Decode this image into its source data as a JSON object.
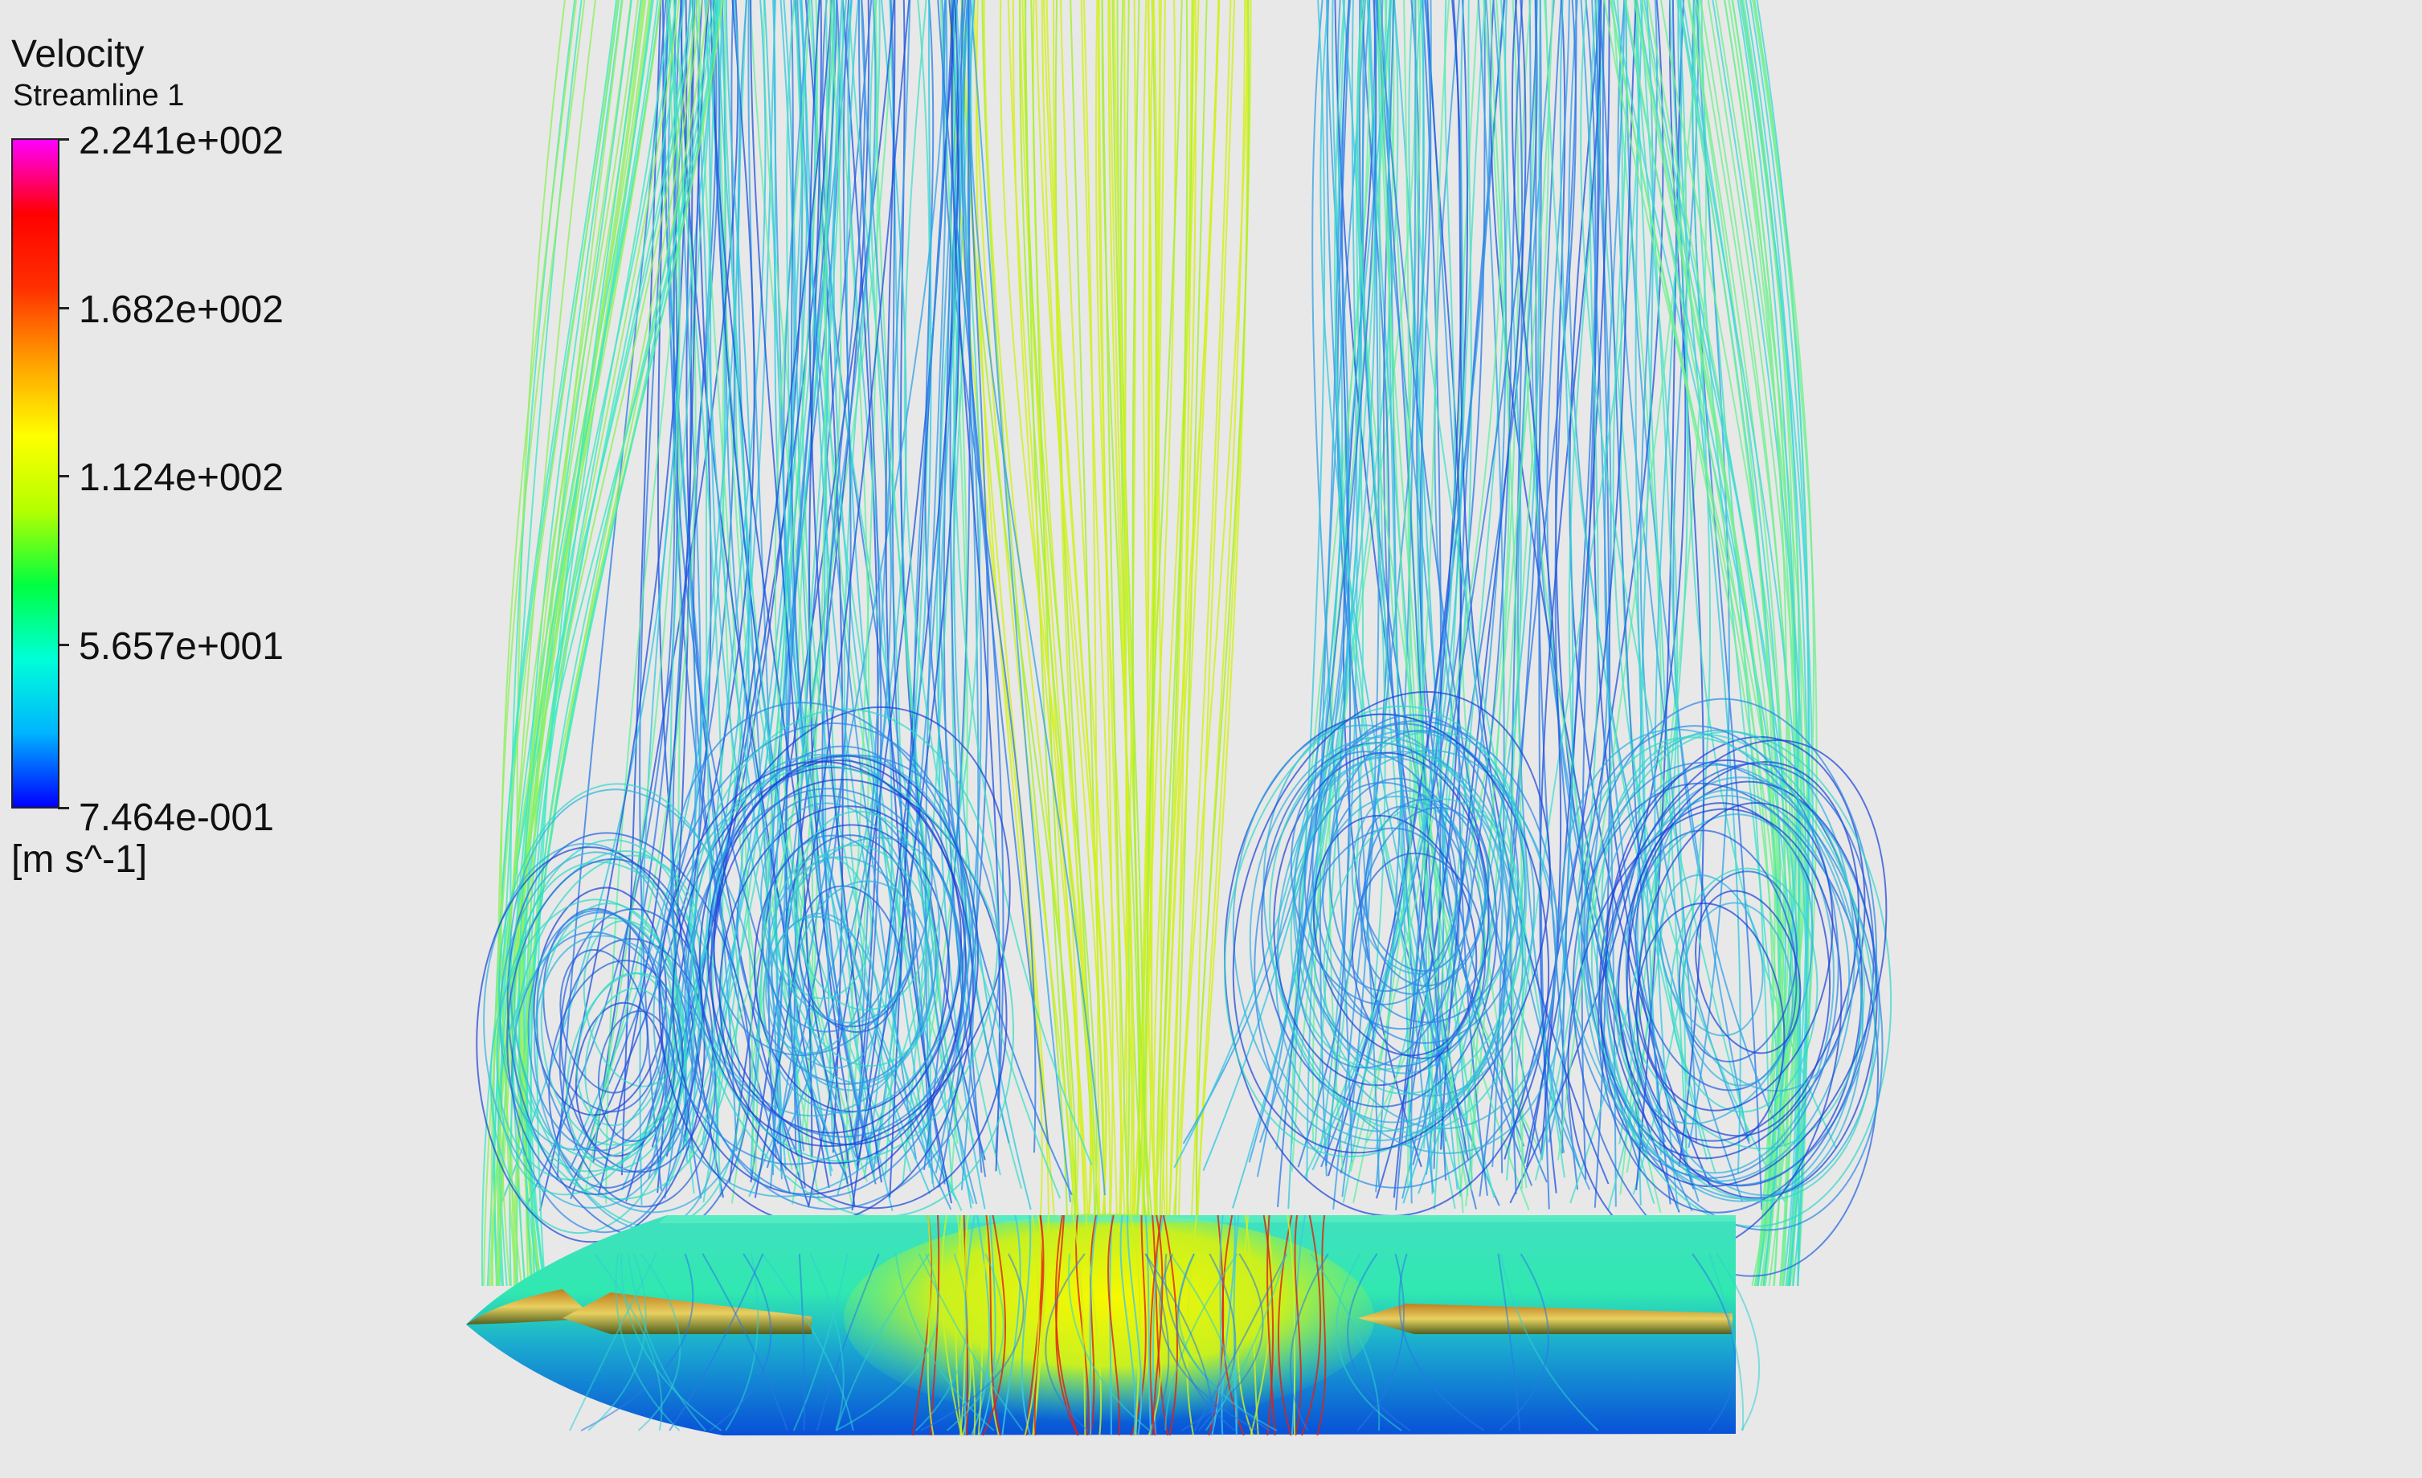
{
  "legend": {
    "title": "Velocity",
    "subtitle": "Streamline 1",
    "units": "[m s^-1]",
    "ticks": [
      "2.241e+002",
      "1.682e+002",
      "1.124e+002",
      "5.657e+001",
      "7.464e-001"
    ],
    "colormap": [
      "#0000ff",
      "#00b4ff",
      "#00ffd8",
      "#00ff40",
      "#b4ff00",
      "#ffff00",
      "#ffa000",
      "#ff3000",
      "#ff0000",
      "#ff00ff"
    ]
  },
  "chart_data": {
    "type": "streamline",
    "variable": "Velocity",
    "range": [
      0.7464,
      224.1
    ],
    "ticks": [
      224.1,
      168.2,
      112.4,
      56.57,
      0.7464
    ],
    "units": "m s^-1"
  },
  "colors": {
    "background": "#e8e8e8",
    "streamline_core": "#d4f020",
    "streamline_vortex": "#2a68e0",
    "streamline_outer": "#30d8d0"
  }
}
